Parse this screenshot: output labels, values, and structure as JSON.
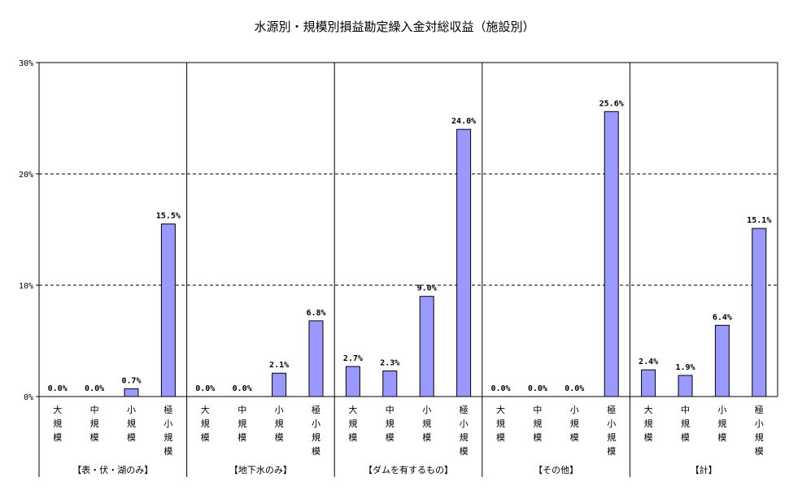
{
  "chart_data": {
    "type": "bar",
    "title": "水源別・規模別損益勘定繰入金対総収益（施設別）",
    "y_ticks": [
      "0%",
      "10%",
      "20%",
      "30%"
    ],
    "ylim": [
      0,
      30
    ],
    "grid": "dashed horizontal at 10%, 20%",
    "bar_color": "#9999ff",
    "groups": [
      {
        "name": "【表・伏・湖のみ】",
        "categories": [
          "大規模",
          "中規模",
          "小規模",
          "極小規模"
        ],
        "values": [
          0.0,
          0.0,
          0.7,
          15.5
        ],
        "labels": [
          "0.0%",
          "0.0%",
          "0.7%",
          "15.5%"
        ]
      },
      {
        "name": "【地下水のみ】",
        "categories": [
          "大規模",
          "中規模",
          "小規模",
          "極小規模"
        ],
        "values": [
          0.0,
          0.0,
          2.1,
          6.8
        ],
        "labels": [
          "0.0%",
          "0.0%",
          "2.1%",
          "6.8%"
        ]
      },
      {
        "name": "【ダムを有するもの】",
        "categories": [
          "大規模",
          "中規模",
          "小規模",
          "極小規模"
        ],
        "values": [
          2.7,
          2.3,
          9.0,
          24.0
        ],
        "labels": [
          "2.7%",
          "2.3%",
          "9.0%",
          "24.0%"
        ]
      },
      {
        "name": "【その他】",
        "categories": [
          "大規模",
          "中規模",
          "小規模",
          "極小規模"
        ],
        "values": [
          0.0,
          0.0,
          0.0,
          25.6
        ],
        "labels": [
          "0.0%",
          "0.0%",
          "0.0%",
          "25.6%"
        ]
      },
      {
        "name": "【計】",
        "categories": [
          "大規模",
          "中規模",
          "小規模",
          "極小規模"
        ],
        "values": [
          2.4,
          1.9,
          6.4,
          15.1
        ],
        "labels": [
          "2.4%",
          "1.9%",
          "6.4%",
          "15.1%"
        ]
      }
    ]
  }
}
